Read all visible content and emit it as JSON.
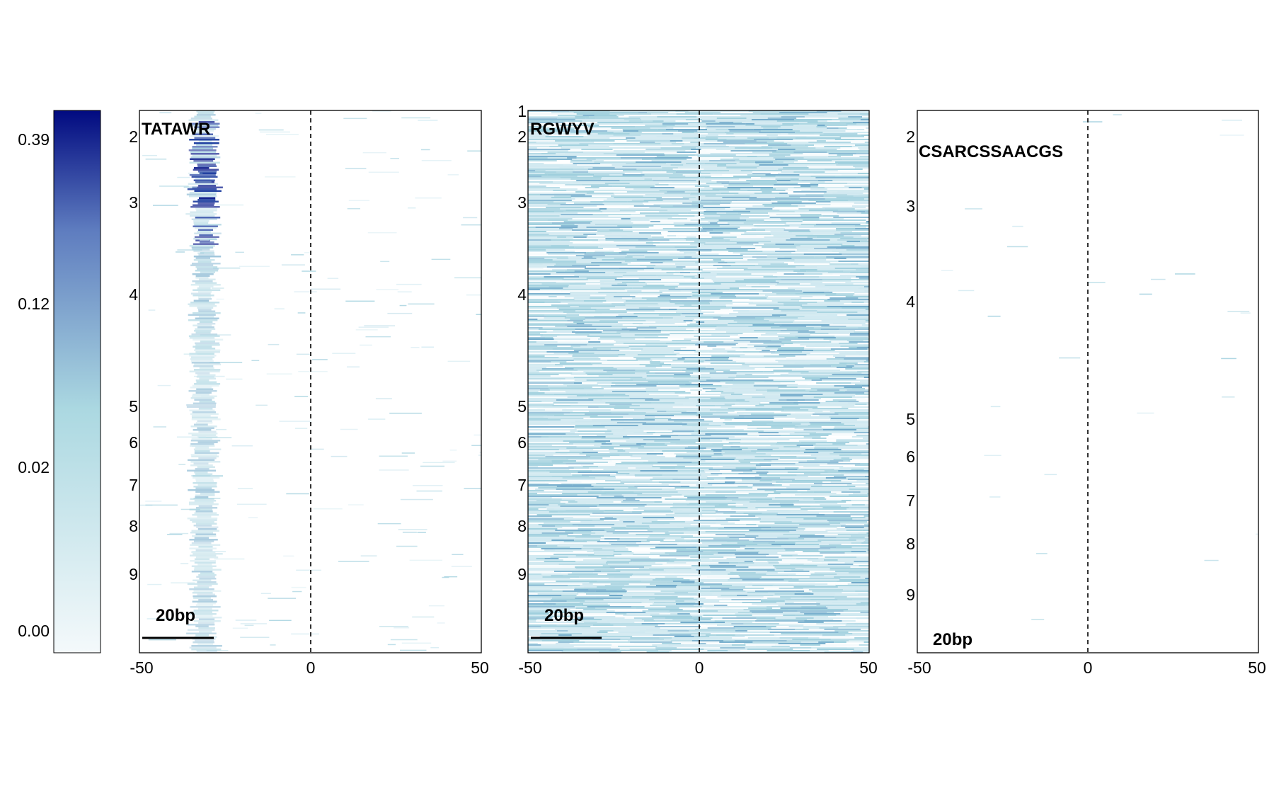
{
  "colors": {
    "background": "#ffffff",
    "axis": "#000000",
    "scale_low": "#f4f9fb",
    "scale_mid": "#abd8e1",
    "scale_high": "#5e7cbf",
    "scale_max": "#010a80"
  },
  "chart_data": [
    {
      "type": "heatmap",
      "role": "colorbar",
      "ticks": [
        "0.39",
        "0.12",
        "0.02",
        "0.00"
      ],
      "tick_values": [
        0.39,
        0.12,
        0.02,
        0.0
      ],
      "colors": [
        "#f4f9fb",
        "#abd8e1",
        "#5e7cbf",
        "#010a80"
      ]
    },
    {
      "type": "heatmap",
      "motif": "TATAWR",
      "x_ticks": [
        "-50",
        "0",
        "50"
      ],
      "xlim": [
        -50,
        50
      ],
      "y_ticks": [
        "2",
        "3",
        "4",
        "5",
        "6",
        "7",
        "8",
        "9"
      ],
      "ylim": [
        1.6,
        10.0
      ],
      "center_line_x": 0,
      "scale_bar_label": "20bp",
      "scale_bar_length": 20,
      "band_x": [
        -33,
        -29
      ],
      "strong_band_y": [
        1.6,
        3.6
      ],
      "background_density": "sparse"
    },
    {
      "type": "heatmap",
      "motif": "RGWYV",
      "x_ticks": [
        "-50",
        "0",
        "50"
      ],
      "xlim": [
        -50,
        50
      ],
      "y_ticks": [
        "1",
        "2",
        "3",
        "4",
        "5",
        "6",
        "7",
        "8",
        "9"
      ],
      "ylim": [
        1.0,
        10.0
      ],
      "center_line_x": 0,
      "scale_bar_label": "20bp",
      "scale_bar_length": 20,
      "background_density": "dense"
    },
    {
      "type": "heatmap",
      "motif": "CSARCSSAACGS",
      "x_ticks": [
        "-50",
        "0",
        "50"
      ],
      "xlim": [
        -50,
        50
      ],
      "y_ticks": [
        "2",
        "3",
        "4",
        "5",
        "6",
        "7",
        "8",
        "9"
      ],
      "ylim": [
        1.6,
        10.0
      ],
      "center_line_x": 0,
      "scale_bar_label": "20bp",
      "background_density": "very_sparse"
    }
  ]
}
